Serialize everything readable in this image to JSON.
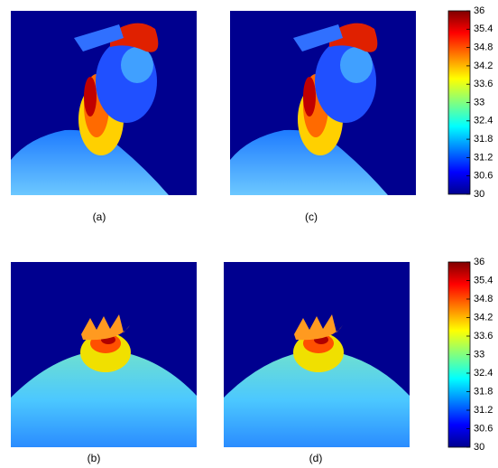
{
  "panels": [
    {
      "label": "(a)"
    },
    {
      "label": "(c)"
    },
    {
      "label": "(b)"
    },
    {
      "label": "(d)"
    }
  ],
  "colorbars": [
    {
      "lim": [
        30,
        36
      ],
      "ticks": [
        30,
        30.6,
        31.2,
        31.8,
        32.4,
        33,
        33.6,
        34.2,
        34.8,
        35.4,
        36
      ]
    },
    {
      "lim": [
        30,
        36
      ],
      "ticks": [
        30,
        30.6,
        31.2,
        31.8,
        32.4,
        33,
        33.6,
        34.2,
        34.8,
        35.4,
        36
      ]
    }
  ]
}
